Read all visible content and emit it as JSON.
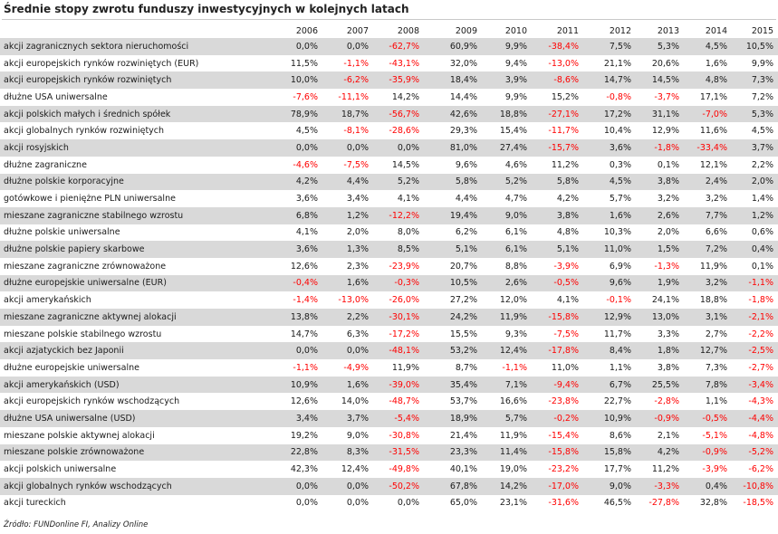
{
  "title": "Średnie stopy zwrotu funduszy inwestycyjnych w kolejnych latach",
  "source": "Źródło: FUNDonline FI, Analizy Online",
  "years": [
    "2006",
    "2007",
    "2008",
    "2009",
    "2010",
    "2011",
    "2012",
    "2013",
    "2014",
    "2015"
  ],
  "rows": [
    {
      "label": "akcji zagranicznych sektora nieruchomości",
      "values": [
        "0,0%",
        "0,0%",
        "-62,7%",
        "60,9%",
        "9,9%",
        "-38,4%",
        "7,5%",
        "5,3%",
        "4,5%",
        "10,5%"
      ]
    },
    {
      "label": "akcji europejskich rynków rozwiniętych (EUR)",
      "values": [
        "11,5%",
        "-1,1%",
        "-43,1%",
        "32,0%",
        "9,4%",
        "-13,0%",
        "21,1%",
        "20,6%",
        "1,6%",
        "9,9%"
      ]
    },
    {
      "label": "akcji europejskich rynków rozwiniętych",
      "values": [
        "10,0%",
        "-6,2%",
        "-35,9%",
        "18,4%",
        "3,9%",
        "-8,6%",
        "14,7%",
        "14,5%",
        "4,8%",
        "7,3%"
      ]
    },
    {
      "label": "dłużne USA uniwersalne",
      "values": [
        "-7,6%",
        "-11,1%",
        "14,2%",
        "14,4%",
        "9,9%",
        "15,2%",
        "-0,8%",
        "-3,7%",
        "17,1%",
        "7,2%"
      ]
    },
    {
      "label": "akcji polskich małych i średnich spółek",
      "values": [
        "78,9%",
        "18,7%",
        "-56,7%",
        "42,6%",
        "18,8%",
        "-27,1%",
        "17,2%",
        "31,1%",
        "-7,0%",
        "5,3%"
      ]
    },
    {
      "label": "akcji globalnych rynków rozwiniętych",
      "values": [
        "4,5%",
        "-8,1%",
        "-28,6%",
        "29,3%",
        "15,4%",
        "-11,7%",
        "10,4%",
        "12,9%",
        "11,6%",
        "4,5%"
      ]
    },
    {
      "label": "akcji rosyjskich",
      "values": [
        "0,0%",
        "0,0%",
        "0,0%",
        "81,0%",
        "27,4%",
        "-15,7%",
        "3,6%",
        "-1,8%",
        "-33,4%",
        "3,7%"
      ]
    },
    {
      "label": "dłużne zagraniczne",
      "values": [
        "-4,6%",
        "-7,5%",
        "14,5%",
        "9,6%",
        "4,6%",
        "11,2%",
        "0,3%",
        "0,1%",
        "12,1%",
        "2,2%"
      ]
    },
    {
      "label": "dłużne polskie korporacyjne",
      "values": [
        "4,2%",
        "4,4%",
        "5,2%",
        "5,8%",
        "5,2%",
        "5,8%",
        "4,5%",
        "3,8%",
        "2,4%",
        "2,0%"
      ]
    },
    {
      "label": "gotówkowe i pieniężne PLN uniwersalne",
      "values": [
        "3,6%",
        "3,4%",
        "4,1%",
        "4,4%",
        "4,7%",
        "4,2%",
        "5,7%",
        "3,2%",
        "3,2%",
        "1,4%"
      ]
    },
    {
      "label": "mieszane zagraniczne stabilnego wzrostu",
      "values": [
        "6,8%",
        "1,2%",
        "-12,2%",
        "19,4%",
        "9,0%",
        "3,8%",
        "1,6%",
        "2,6%",
        "7,7%",
        "1,2%"
      ]
    },
    {
      "label": "dłużne polskie uniwersalne",
      "values": [
        "4,1%",
        "2,0%",
        "8,0%",
        "6,2%",
        "6,1%",
        "4,8%",
        "10,3%",
        "2,0%",
        "6,6%",
        "0,6%"
      ]
    },
    {
      "label": "dłużne polskie papiery skarbowe",
      "values": [
        "3,6%",
        "1,3%",
        "8,5%",
        "5,1%",
        "6,1%",
        "5,1%",
        "11,0%",
        "1,5%",
        "7,2%",
        "0,4%"
      ]
    },
    {
      "label": "mieszane zagraniczne zrównoważone",
      "values": [
        "12,6%",
        "2,3%",
        "-23,9%",
        "20,7%",
        "8,8%",
        "-3,9%",
        "6,9%",
        "-1,3%",
        "11,9%",
        "0,1%"
      ]
    },
    {
      "label": "dłużne europejskie uniwersalne (EUR)",
      "values": [
        "-0,4%",
        "1,6%",
        "-0,3%",
        "10,5%",
        "2,6%",
        "-0,5%",
        "9,6%",
        "1,9%",
        "3,2%",
        "-1,1%"
      ]
    },
    {
      "label": "akcji amerykańskich",
      "values": [
        "-1,4%",
        "-13,0%",
        "-26,0%",
        "27,2%",
        "12,0%",
        "4,1%",
        "-0,1%",
        "24,1%",
        "18,8%",
        "-1,8%"
      ]
    },
    {
      "label": "mieszane zagraniczne aktywnej alokacji",
      "values": [
        "13,8%",
        "2,2%",
        "-30,1%",
        "24,2%",
        "11,9%",
        "-15,8%",
        "12,9%",
        "13,0%",
        "3,1%",
        "-2,1%"
      ]
    },
    {
      "label": "mieszane polskie stabilnego wzrostu",
      "values": [
        "14,7%",
        "6,3%",
        "-17,2%",
        "15,5%",
        "9,3%",
        "-7,5%",
        "11,7%",
        "3,3%",
        "2,7%",
        "-2,2%"
      ]
    },
    {
      "label": "akcji azjatyckich bez Japonii",
      "values": [
        "0,0%",
        "0,0%",
        "-48,1%",
        "53,2%",
        "12,4%",
        "-17,8%",
        "8,4%",
        "1,8%",
        "12,7%",
        "-2,5%"
      ]
    },
    {
      "label": "dłużne europejskie uniwersalne",
      "values": [
        "-1,1%",
        "-4,9%",
        "11,9%",
        "8,7%",
        "-1,1%",
        "11,0%",
        "1,1%",
        "3,8%",
        "7,3%",
        "-2,7%"
      ]
    },
    {
      "label": "akcji amerykańskich (USD)",
      "values": [
        "10,9%",
        "1,6%",
        "-39,0%",
        "35,4%",
        "7,1%",
        "-9,4%",
        "6,7%",
        "25,5%",
        "7,8%",
        "-3,4%"
      ]
    },
    {
      "label": "akcji europejskich rynków wschodzących",
      "values": [
        "12,6%",
        "14,0%",
        "-48,7%",
        "53,7%",
        "16,6%",
        "-23,8%",
        "22,7%",
        "-2,8%",
        "1,1%",
        "-4,3%"
      ]
    },
    {
      "label": "dłużne USA uniwersalne (USD)",
      "values": [
        "3,4%",
        "3,7%",
        "-5,4%",
        "18,9%",
        "5,7%",
        "-0,2%",
        "10,9%",
        "-0,9%",
        "-0,5%",
        "-4,4%"
      ]
    },
    {
      "label": "mieszane polskie aktywnej alokacji",
      "values": [
        "19,2%",
        "9,0%",
        "-30,8%",
        "21,4%",
        "11,9%",
        "-15,4%",
        "8,6%",
        "2,1%",
        "-5,1%",
        "-4,8%"
      ]
    },
    {
      "label": "mieszane polskie zrównoważone",
      "values": [
        "22,8%",
        "8,3%",
        "-31,5%",
        "23,3%",
        "11,4%",
        "-15,8%",
        "15,8%",
        "4,2%",
        "-0,9%",
        "-5,2%"
      ]
    },
    {
      "label": "akcji polskich uniwersalne",
      "values": [
        "42,3%",
        "12,4%",
        "-49,8%",
        "40,1%",
        "19,0%",
        "-23,2%",
        "17,7%",
        "11,2%",
        "-3,9%",
        "-6,2%"
      ]
    },
    {
      "label": "akcji globalnych rynków wschodzących",
      "values": [
        "0,0%",
        "0,0%",
        "-50,2%",
        "67,8%",
        "14,2%",
        "-17,0%",
        "9,0%",
        "-3,3%",
        "0,4%",
        "-10,8%"
      ]
    },
    {
      "label": "akcji tureckich",
      "values": [
        "0,0%",
        "0,0%",
        "0,0%",
        "65,0%",
        "23,1%",
        "-31,6%",
        "46,5%",
        "-27,8%",
        "32,8%",
        "-18,5%"
      ]
    }
  ]
}
